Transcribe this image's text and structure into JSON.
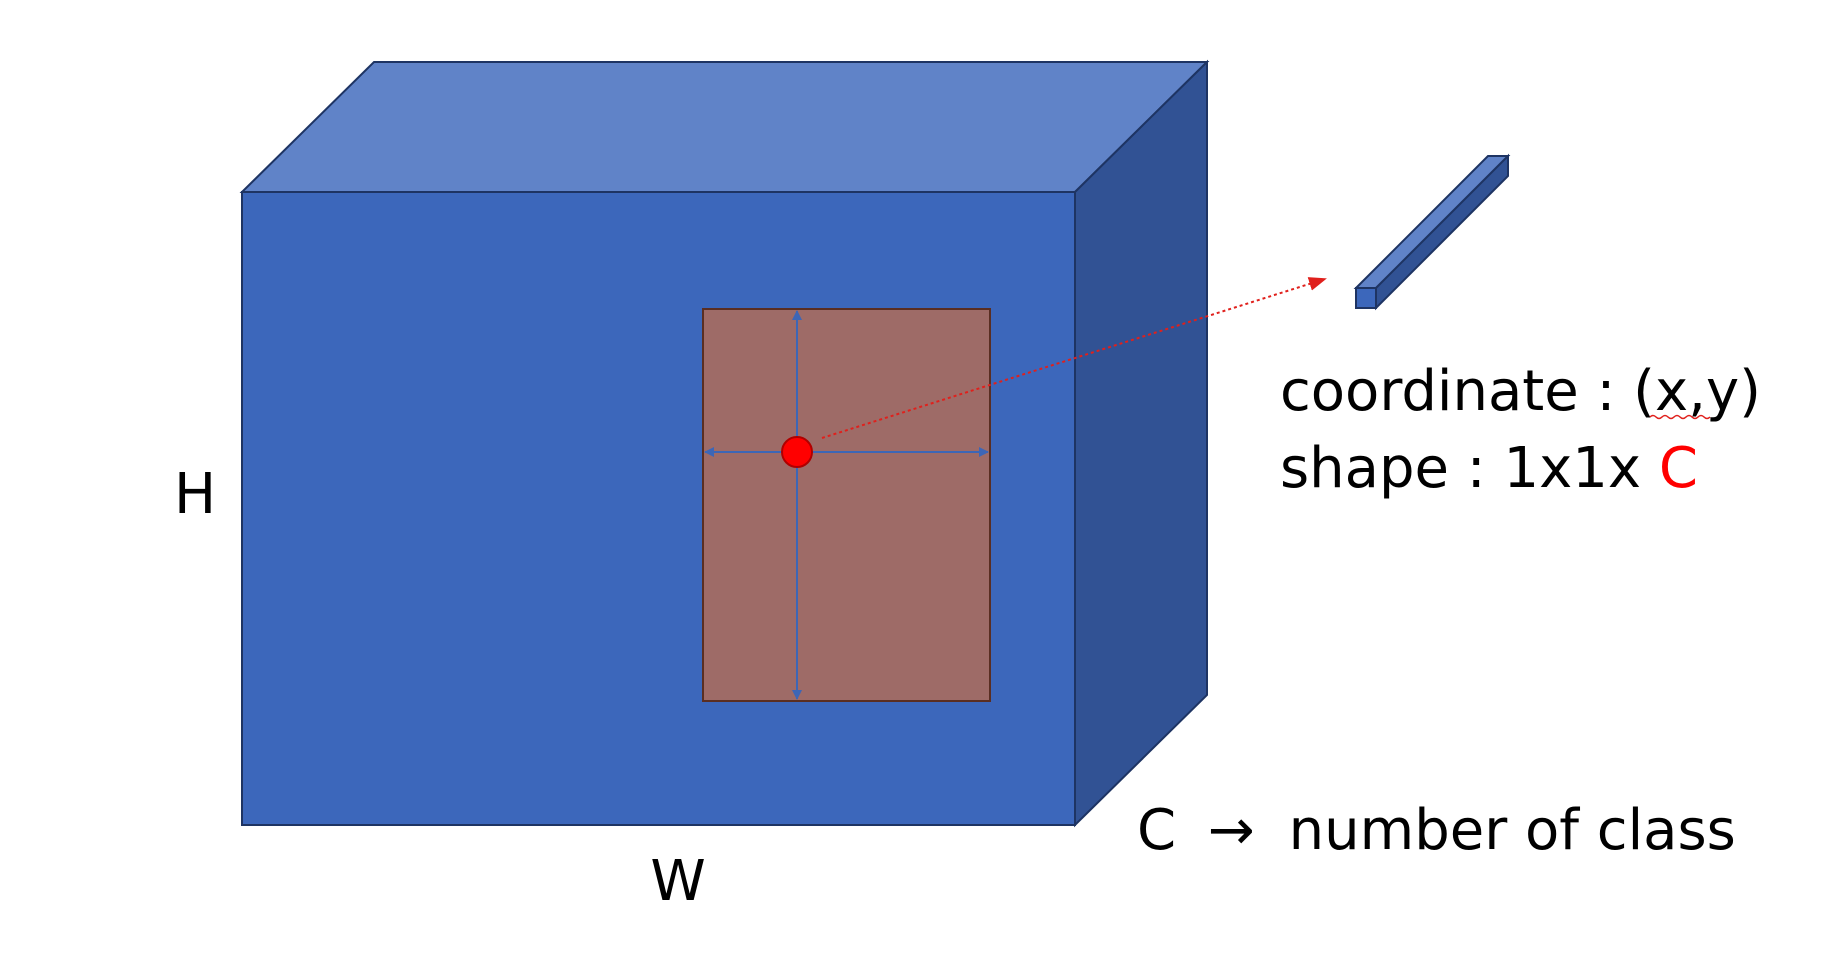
{
  "labels": {
    "height": "H",
    "width": "W",
    "channel_prefix": "C",
    "channel_arrow": "→",
    "channel_desc": "number of class"
  },
  "info": {
    "coordinate_prefix": "coordinate : ",
    "coordinate_value": "(x,y)",
    "shape_prefix": "shape : 1x1x",
    "shape_highlight": "C"
  },
  "colors": {
    "front_face": "#3c67bb",
    "top_face": "#6083c8",
    "side_face": "#315294",
    "edge": "#1e3463",
    "region_fill": "#9e6b67",
    "region_edge": "#5a2e22",
    "region_axes": "#3d66b6",
    "center_point": "#ff0000",
    "pointer": "#e0201c",
    "highlight_text": "#ff0000"
  }
}
